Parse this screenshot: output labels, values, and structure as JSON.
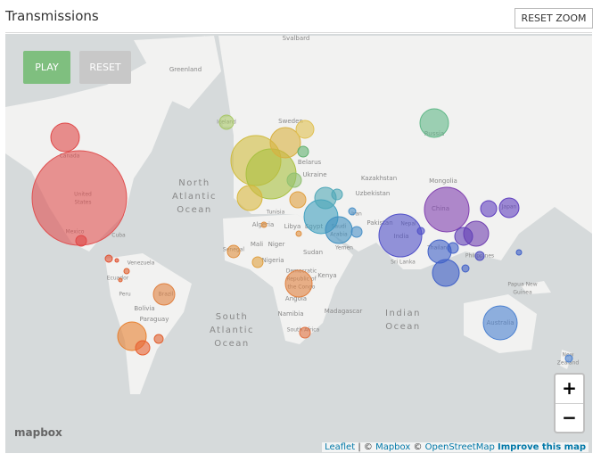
{
  "header": {
    "title": "Transmissions",
    "reset_zoom": "RESET ZOOM"
  },
  "controls": {
    "play": "PLAY",
    "reset": "RESET"
  },
  "zoom": {
    "in": "+",
    "out": "−"
  },
  "logo": "mapbox",
  "attribution": [
    "Leaflet",
    "|",
    "©",
    "Mapbox",
    "©",
    "OpenStreetMap",
    "Improve this map"
  ],
  "map": {
    "labels": [
      "Svalbard",
      "Greenland",
      "Iceland",
      "Sweden",
      "Russia",
      "Canada",
      "United",
      "States",
      "Mexico",
      "Cuba",
      "North",
      "Atlantic",
      "Ocean",
      "Belarus",
      "Ukraine",
      "Kazakhstan",
      "Uzbekistan",
      "Mongolia",
      "China",
      "Japan",
      "Iran",
      "Pakistan",
      "India",
      "Nepal",
      "Sri Lanka",
      "Thailand",
      "Philippines",
      "Papua New",
      "Guinea",
      "Australia",
      "New",
      "Zealand",
      "Indian",
      "Ocean",
      "South",
      "Atlantic",
      "Ocean",
      "Algeria",
      "Libya",
      "Egypt",
      "Mali",
      "Niger",
      "Senegal",
      "Nigeria",
      "Sudan",
      "Saudi",
      "Arabia",
      "Yemen",
      "Kenya",
      "Tunisia",
      "Democratic",
      "Republic of",
      "the Congo",
      "Angola",
      "Namibia",
      "South Africa",
      "Madagascar",
      "Venezuela",
      "Ecuador",
      "Peru",
      "Brazil",
      "Bolivia",
      "Paraguay"
    ]
  }
}
